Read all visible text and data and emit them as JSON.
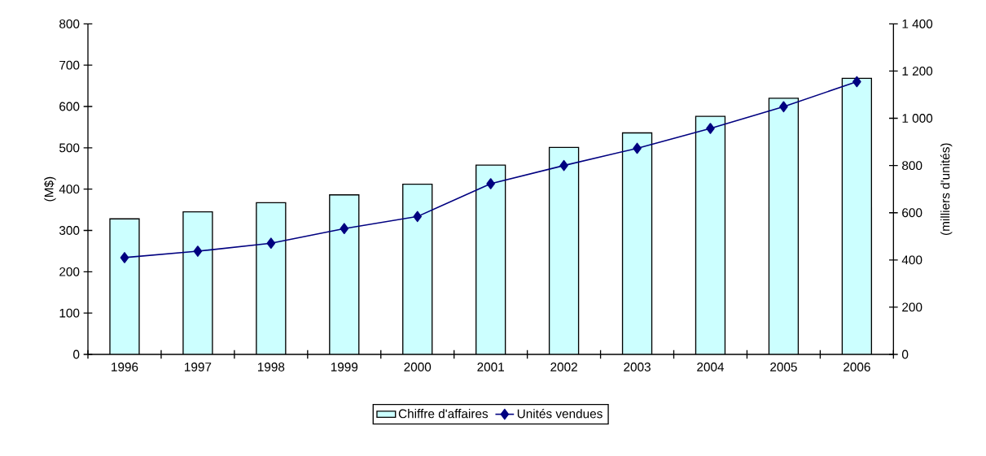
{
  "chart_data": {
    "type": "bar",
    "categories": [
      "1996",
      "1997",
      "1998",
      "1999",
      "2000",
      "2001",
      "2002",
      "2003",
      "2004",
      "2005",
      "2006"
    ],
    "series": [
      {
        "name": "Chiffre d'affaires",
        "color": "#ccffff",
        "values": [
          328,
          345,
          367,
          386,
          412,
          458,
          501,
          536,
          576,
          620,
          668
        ]
      },
      {
        "name": "Unités vendues",
        "type": "line",
        "axis": "y2",
        "color": "#000080",
        "marker": "diamond",
        "line_style": "solid",
        "values": [
          410,
          437,
          471,
          533,
          584,
          723,
          800,
          873,
          957,
          1049,
          1155
        ]
      }
    ],
    "ylabel": "(M$)",
    "y2label": "(milliers d'unités)",
    "ylim": [
      0,
      800
    ],
    "yticks": [
      0,
      100,
      200,
      300,
      400,
      500,
      600,
      700,
      800
    ],
    "y2lim": [
      0,
      1400
    ],
    "y2ticks": [
      0,
      200,
      400,
      600,
      800,
      {
        "value": 1000,
        "label": "1 000"
      },
      {
        "value": 1200,
        "label": "1 200"
      },
      {
        "value": 1400,
        "label": "1 400"
      }
    ],
    "legend": "bottom"
  }
}
